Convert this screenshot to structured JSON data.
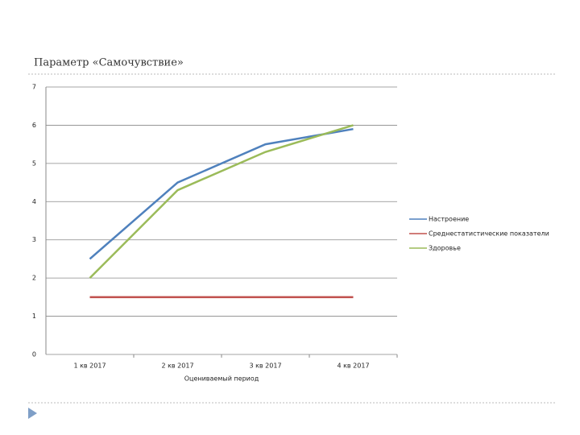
{
  "chart_data": {
    "type": "line",
    "title": "Параметр «Самочувствие»",
    "x_label": "Оцениваемый период",
    "categories": [
      "1 кв 2017",
      "2 кв 2017",
      "3 кв 2017",
      "4 кв 2017"
    ],
    "series": [
      {
        "name": "Настроение",
        "color": "#4f81bd",
        "values": [
          2.5,
          4.5,
          5.5,
          5.9
        ]
      },
      {
        "name": "Среднестатистические показатели",
        "color": "#c0504d",
        "values": [
          1.5,
          1.5,
          1.5,
          1.5
        ]
      },
      {
        "name": "Здоровье",
        "color": "#9bbb59",
        "values": [
          2,
          4.3,
          5.3,
          6
        ]
      }
    ],
    "ylim": [
      0,
      7
    ],
    "yticks": [
      0,
      1,
      2,
      3,
      4,
      5,
      6,
      7
    ],
    "grid": true,
    "legend": "right"
  }
}
